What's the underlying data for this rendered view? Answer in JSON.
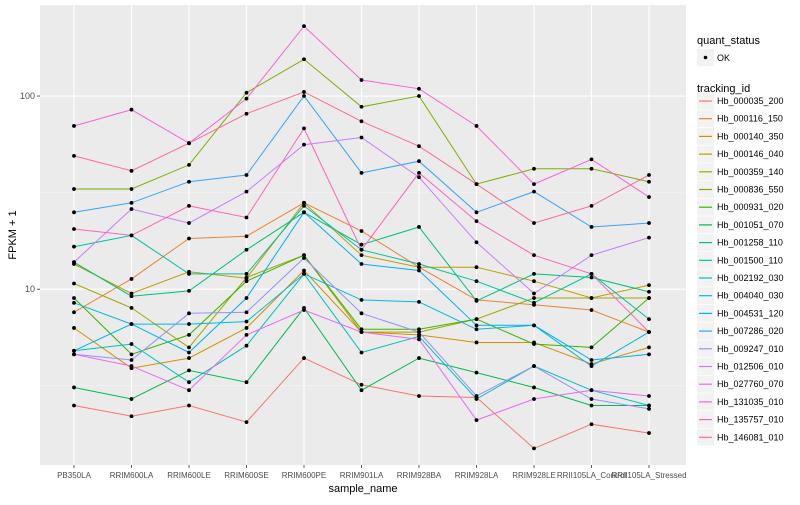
{
  "chart_data": {
    "type": "line",
    "title": "",
    "xlabel": "sample_name",
    "ylabel": "FPKM + 1",
    "y_scale": "log10",
    "ylim": [
      1.23,
      296
    ],
    "y_ticks": [
      10,
      100
    ],
    "y_tick_labels": [
      "10",
      "100"
    ],
    "grid": true,
    "legend_position": "right",
    "categories": [
      "PB350LA",
      "RRIM600LA",
      "RRIM600LE",
      "RRIM600SE",
      "RRIM600PE",
      "RRIM901LA",
      "RRIM928BA",
      "RRIM928LA",
      "RRIM928LE",
      "RRII105LA_Control",
      "RRII105LA_Stressed"
    ],
    "shape_legend": {
      "title": "quant_status",
      "entries": [
        "OK"
      ]
    },
    "color_legend_title": "tracking_id",
    "series": [
      {
        "name": "Hb_000035_200",
        "color": "#F8766D",
        "values": [
          2.5,
          2.2,
          2.5,
          2.05,
          4.4,
          3.2,
          2.8,
          2.75,
          1.5,
          2.0,
          1.8
        ]
      },
      {
        "name": "Hb_000116_150",
        "color": "#EA8331",
        "values": [
          7.6,
          11.3,
          18.3,
          18.8,
          28,
          20,
          13,
          8.8,
          8.3,
          7.8,
          6
        ]
      },
      {
        "name": "Hb_000140_350",
        "color": "#D89000",
        "values": [
          6.3,
          3.9,
          4.4,
          6.3,
          12.5,
          6,
          5.8,
          5.3,
          5.3,
          4.1,
          5
        ]
      },
      {
        "name": "Hb_000146_040",
        "color": "#C09B00",
        "values": [
          13.5,
          9.5,
          12.3,
          11.4,
          28,
          15,
          13,
          13,
          11,
          9,
          10.5
        ]
      },
      {
        "name": "Hb_000359_140",
        "color": "#A3A500",
        "values": [
          10.7,
          8,
          5,
          11.5,
          15,
          6,
          6,
          7,
          9,
          9,
          9
        ]
      },
      {
        "name": "Hb_000836_550",
        "color": "#7CAE00",
        "values": [
          33,
          33,
          44,
          104,
          155,
          88,
          100,
          35,
          42,
          42,
          36
        ]
      },
      {
        "name": "Hb_000931_020",
        "color": "#39B600",
        "values": [
          9,
          4.6,
          5.8,
          11,
          15,
          6.2,
          6.2,
          7,
          5.2,
          5,
          9
        ]
      },
      {
        "name": "Hb_001051_070",
        "color": "#00BB4E",
        "values": [
          3.1,
          2.7,
          3.8,
          3.3,
          8,
          3,
          4.4,
          3.7,
          3.1,
          2.5,
          2.5
        ]
      },
      {
        "name": "Hb_001258_110",
        "color": "#00BF7D",
        "values": [
          13.8,
          9.2,
          9.8,
          16,
          25,
          17,
          21,
          8.7,
          12,
          11.5,
          9.7
        ]
      },
      {
        "name": "Hb_001500_110",
        "color": "#00C1A3",
        "values": [
          16.6,
          19,
          12,
          12,
          27,
          16,
          13.5,
          11,
          8.5,
          12,
          7
        ]
      },
      {
        "name": "Hb_002192_030",
        "color": "#00BFC4",
        "values": [
          4.8,
          5.2,
          3.3,
          5.1,
          12,
          4.7,
          5.7,
          2.7,
          4,
          3,
          2.5
        ]
      },
      {
        "name": "Hb_004040_030",
        "color": "#00BAE0",
        "values": [
          8.5,
          6.6,
          6.6,
          6.8,
          12,
          8.8,
          8.6,
          6.2,
          6.5,
          4,
          6
        ]
      },
      {
        "name": "Hb_004531_120",
        "color": "#00B0F6",
        "values": [
          4.8,
          6.6,
          4.7,
          9,
          25,
          13.5,
          12.5,
          6.5,
          6.5,
          4.3,
          4.6
        ]
      },
      {
        "name": "Hb_007286_020",
        "color": "#35A2FF",
        "values": [
          25,
          28,
          36,
          39,
          100,
          40,
          46,
          25,
          32,
          21,
          22
        ]
      },
      {
        "name": "Hb_009247_010",
        "color": "#9590FF",
        "values": [
          4.6,
          4.3,
          7.5,
          7.6,
          14.5,
          7.5,
          6,
          2.8,
          4,
          2.7,
          2.4
        ]
      },
      {
        "name": "Hb_012506_010",
        "color": "#C77CFF",
        "values": [
          13.8,
          26,
          22,
          32,
          56,
          61,
          38,
          17.5,
          9.5,
          15,
          18.5
        ]
      },
      {
        "name": "Hb_027760_070",
        "color": "#E76BF3",
        "values": [
          4.6,
          4,
          3,
          5.8,
          7.8,
          6,
          5.5,
          2.1,
          2.7,
          3,
          2.8
        ]
      },
      {
        "name": "Hb_131035_010",
        "color": "#FA62DB",
        "values": [
          70,
          85,
          57,
          97,
          230,
          121,
          109,
          70,
          35,
          47,
          30
        ]
      },
      {
        "name": "Hb_135757_010",
        "color": "#FF62BC",
        "values": [
          20.5,
          19,
          27,
          23.5,
          68,
          16,
          40,
          22.5,
          15,
          12,
          6
        ]
      },
      {
        "name": "Hb_146081_010",
        "color": "#FF6C91",
        "values": [
          49,
          41,
          57,
          81,
          105,
          74,
          55,
          35,
          22,
          27,
          39
        ]
      }
    ]
  }
}
